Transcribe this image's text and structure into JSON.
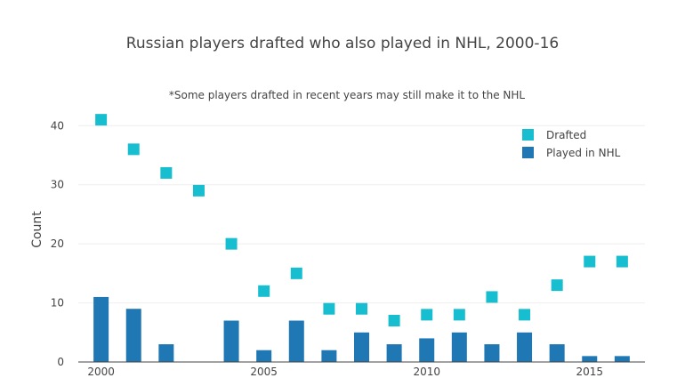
{
  "chart_data": {
    "type": "bar+scatter",
    "title": "Russian players drafted who also played in NHL, 2000-16",
    "subtitle": "*Some players drafted in recent years may still make it to the NHL",
    "xlabel": "",
    "ylabel": "Count",
    "x": [
      2000,
      2001,
      2002,
      2003,
      2004,
      2005,
      2006,
      2007,
      2008,
      2009,
      2010,
      2011,
      2012,
      2013,
      2014,
      2015,
      2016
    ],
    "xlim": [
      1999.3,
      2016.7
    ],
    "ylim": [
      0,
      42
    ],
    "x_ticks": [
      2000,
      2005,
      2010,
      2015
    ],
    "y_ticks": [
      0,
      10,
      20,
      30,
      40
    ],
    "grid": true,
    "legend_position": "top-right",
    "series": [
      {
        "name": "Drafted",
        "kind": "scatter",
        "marker": "square",
        "color": "#17becf",
        "values": [
          41,
          36,
          32,
          29,
          20,
          12,
          15,
          9,
          9,
          7,
          8,
          8,
          11,
          8,
          13,
          17,
          17
        ]
      },
      {
        "name": "Played in NHL",
        "kind": "bar",
        "color": "#1f77b4",
        "values": [
          11,
          9,
          3,
          null,
          7,
          2,
          7,
          2,
          5,
          3,
          4,
          5,
          3,
          5,
          3,
          1,
          1
        ]
      }
    ]
  }
}
